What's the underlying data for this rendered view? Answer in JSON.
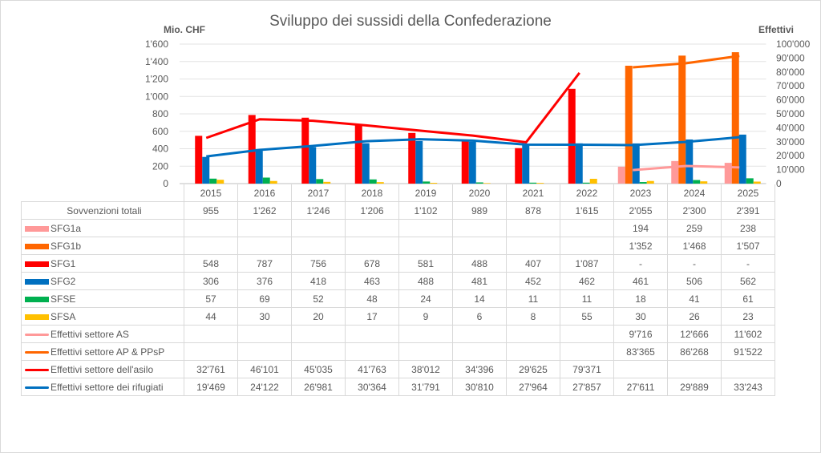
{
  "chart_data": {
    "type": "bar",
    "title": "Sviluppo dei sussidi della Confederazione",
    "ylabel": "Mio. CHF",
    "y2label": "Effettivi",
    "ylim": [
      0,
      1600
    ],
    "y2lim": [
      0,
      100000
    ],
    "yticks": [
      "0",
      "200",
      "400",
      "600",
      "800",
      "1'000",
      "1'200",
      "1'400",
      "1'600"
    ],
    "y2ticks": [
      "0",
      "10'000",
      "20'000",
      "30'000",
      "40'000",
      "50'000",
      "60'000",
      "70'000",
      "80'000",
      "90'000",
      "100'000"
    ],
    "grid": true,
    "legend_position": "data-table",
    "categories": [
      "2015",
      "2016",
      "2017",
      "2018",
      "2019",
      "2020",
      "2021",
      "2022",
      "2023",
      "2024",
      "2025"
    ],
    "totals": {
      "name": "Sovvenzioni totali",
      "values": [
        955,
        1262,
        1246,
        1206,
        1102,
        989,
        878,
        1615,
        2055,
        2300,
        2391
      ],
      "labels": [
        "955",
        "1'262",
        "1'246",
        "1'206",
        "1'102",
        "989",
        "878",
        "1'615",
        "2'055",
        "2'300",
        "2'391"
      ]
    },
    "series": [
      {
        "name": "SFG1a",
        "type": "bar",
        "axis": "left",
        "color": "#ff9999",
        "values": [
          null,
          null,
          null,
          null,
          null,
          null,
          null,
          null,
          194,
          259,
          238
        ],
        "labels": [
          "",
          "",
          "",
          "",
          "",
          "",
          "",
          "",
          "194",
          "259",
          "238"
        ]
      },
      {
        "name": "SFG1b",
        "type": "bar",
        "axis": "left",
        "color": "#ff6600",
        "values": [
          null,
          null,
          null,
          null,
          null,
          null,
          null,
          null,
          1352,
          1468,
          1507
        ],
        "labels": [
          "",
          "",
          "",
          "",
          "",
          "",
          "",
          "",
          "1'352",
          "1'468",
          "1'507"
        ]
      },
      {
        "name": "SFG1",
        "type": "bar",
        "axis": "left",
        "color": "#ff0000",
        "values": [
          548,
          787,
          756,
          678,
          581,
          488,
          407,
          1087,
          null,
          null,
          null
        ],
        "labels": [
          "548",
          "787",
          "756",
          "678",
          "581",
          "488",
          "407",
          "1'087",
          "-",
          "-",
          "-"
        ]
      },
      {
        "name": "SFG2",
        "type": "bar",
        "axis": "left",
        "color": "#0070c0",
        "values": [
          306,
          376,
          418,
          463,
          488,
          481,
          452,
          462,
          461,
          506,
          562
        ],
        "labels": [
          "306",
          "376",
          "418",
          "463",
          "488",
          "481",
          "452",
          "462",
          "461",
          "506",
          "562"
        ]
      },
      {
        "name": "SFSE",
        "type": "bar",
        "axis": "left",
        "color": "#00b050",
        "values": [
          57,
          69,
          52,
          48,
          24,
          14,
          11,
          11,
          18,
          41,
          61
        ],
        "labels": [
          "57",
          "69",
          "52",
          "48",
          "24",
          "14",
          "11",
          "11",
          "18",
          "41",
          "61"
        ]
      },
      {
        "name": "SFSA",
        "type": "bar",
        "axis": "left",
        "color": "#ffc000",
        "values": [
          44,
          30,
          20,
          17,
          9,
          6,
          8,
          55,
          30,
          26,
          23
        ],
        "labels": [
          "44",
          "30",
          "20",
          "17",
          "9",
          "6",
          "8",
          "55",
          "30",
          "26",
          "23"
        ]
      },
      {
        "name": "Effettivi settore AS",
        "type": "line",
        "axis": "right",
        "color": "#ff9999",
        "values": [
          null,
          null,
          null,
          null,
          null,
          null,
          null,
          null,
          9716,
          12666,
          11602
        ],
        "labels": [
          "",
          "",
          "",
          "",
          "",
          "",
          "",
          "",
          "9'716",
          "12'666",
          "11'602"
        ]
      },
      {
        "name": "Effettivi settore AP & PPsP",
        "type": "line",
        "axis": "right",
        "color": "#ff6600",
        "values": [
          null,
          null,
          null,
          null,
          null,
          null,
          null,
          null,
          83365,
          86268,
          91522
        ],
        "labels": [
          "",
          "",
          "",
          "",
          "",
          "",
          "",
          "",
          "83'365",
          "86'268",
          "91'522"
        ]
      },
      {
        "name": "Effettivi settore dell'asilo",
        "type": "line",
        "axis": "right",
        "color": "#ff0000",
        "values": [
          32761,
          46101,
          45035,
          41763,
          38012,
          34396,
          29625,
          79371,
          null,
          null,
          null
        ],
        "labels": [
          "32'761",
          "46'101",
          "45'035",
          "41'763",
          "38'012",
          "34'396",
          "29'625",
          "79'371",
          "",
          "",
          ""
        ]
      },
      {
        "name": "Effettivi settore dei rifugiati",
        "type": "line",
        "axis": "right",
        "color": "#0070c0",
        "values": [
          19469,
          24122,
          26981,
          30364,
          31791,
          30810,
          27964,
          27857,
          27611,
          29889,
          33243
        ],
        "labels": [
          "19'469",
          "24'122",
          "26'981",
          "30'364",
          "31'791",
          "30'810",
          "27'964",
          "27'857",
          "27'611",
          "29'889",
          "33'243"
        ]
      }
    ]
  }
}
